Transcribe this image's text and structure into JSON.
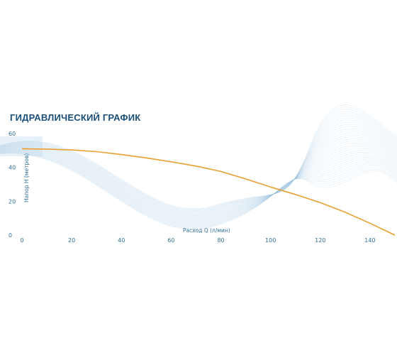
{
  "chart_data": {
    "type": "line",
    "title": "ГИДРАВЛИЧЕСКИЙ ГРАФИК",
    "xlabel": "Расход Q (л/мин)",
    "ylabel": "Напор H (метров)",
    "xlim": [
      0,
      150
    ],
    "ylim": [
      0,
      60
    ],
    "x_ticks": [
      0,
      20,
      40,
      60,
      80,
      100,
      120,
      140
    ],
    "y_ticks": [
      0,
      20,
      40,
      60
    ],
    "grid": false,
    "series": [
      {
        "x": [
          0,
          10,
          20,
          30,
          40,
          50,
          60,
          70,
          80,
          90,
          100,
          110,
          120,
          130,
          140,
          150
        ],
        "y": [
          51,
          50.8,
          50.3,
          49.3,
          47.6,
          45.6,
          43.3,
          40.8,
          37.6,
          33.2,
          28.4,
          24.0,
          19.2,
          13.5,
          7.0,
          0
        ],
        "color": "#e8a030"
      }
    ]
  }
}
